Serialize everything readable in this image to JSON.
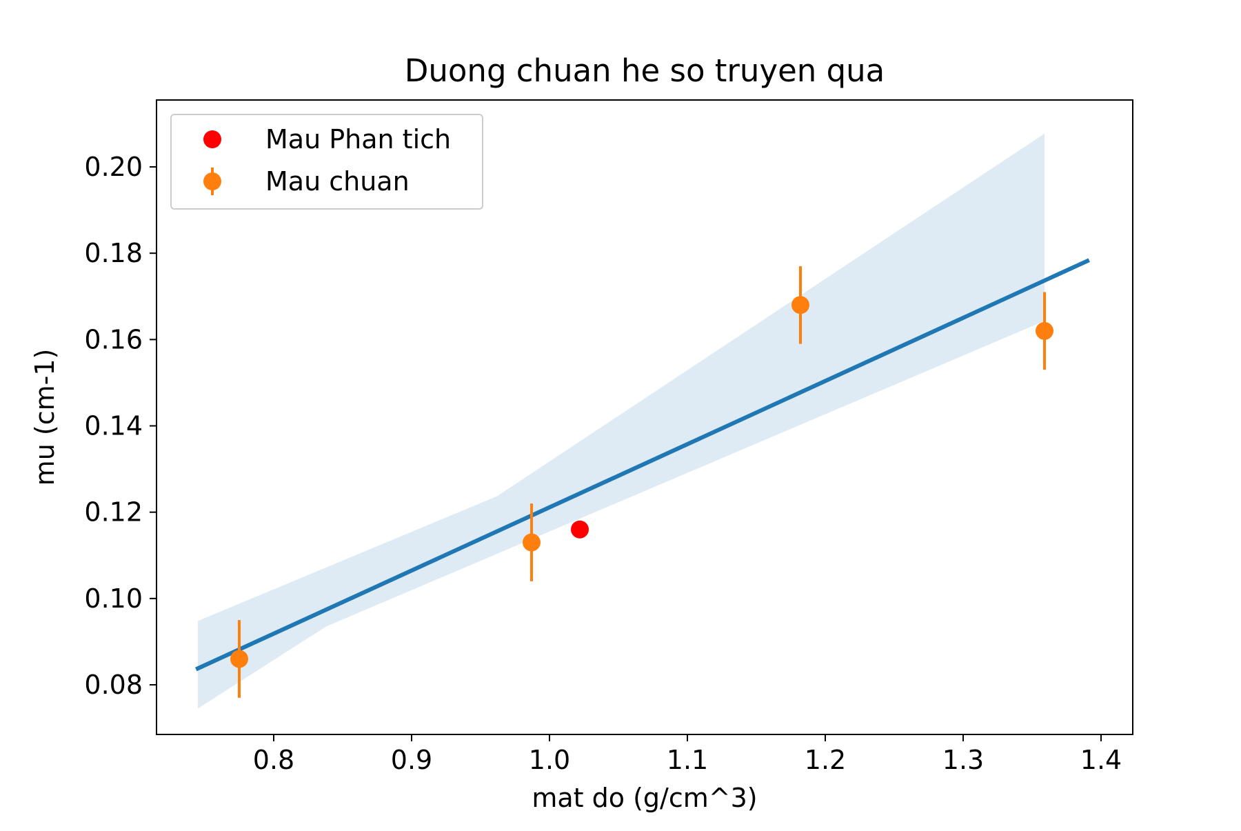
{
  "chart_data": {
    "type": "scatter",
    "title": "Duong chuan he so truyen qua",
    "xlabel": "mat do (g/cm^3)",
    "ylabel": "mu (cm-1)",
    "xlim": [
      0.715,
      1.423
    ],
    "ylim": [
      0.0685,
      0.2155
    ],
    "xticks": [
      0.8,
      0.9,
      1.0,
      1.1,
      1.2,
      1.3,
      1.4
    ],
    "xtick_labels": [
      "0.8",
      "0.9",
      "1.0",
      "1.1",
      "1.2",
      "1.3",
      "1.4"
    ],
    "yticks": [
      0.08,
      0.1,
      0.12,
      0.14,
      0.16,
      0.18,
      0.2
    ],
    "ytick_labels": [
      "0.08",
      "0.10",
      "0.12",
      "0.14",
      "0.16",
      "0.18",
      "0.20"
    ],
    "grid": false,
    "legend_position": "top-left",
    "series": [
      {
        "name": "Mau Phan tich",
        "kind": "points",
        "color": "#ff0000",
        "x": [
          1.022
        ],
        "y": [
          0.116
        ]
      },
      {
        "name": "Mau chuan",
        "kind": "errorbar",
        "color": "#ff7f0e",
        "x": [
          0.775,
          0.987,
          1.182,
          1.359
        ],
        "y": [
          0.086,
          0.113,
          0.168,
          0.162
        ],
        "yerr": [
          0.009,
          0.009,
          0.009,
          0.009
        ]
      },
      {
        "kind": "fit-line",
        "color": "#1f77b4",
        "x": [
          0.745,
          1.39
        ],
        "y": [
          0.0838,
          0.1782
        ]
      },
      {
        "kind": "confidence-band",
        "color": "#1f77b4",
        "opacity": 0.15,
        "x": [
          0.745,
          0.962,
          1.359
        ],
        "upper": [
          0.0948,
          0.1237,
          0.2077
        ],
        "lower": [
          0.0745,
          0.0935,
          0.1643
        ],
        "lower_x": [
          0.745,
          0.838,
          1.359
        ]
      }
    ]
  }
}
